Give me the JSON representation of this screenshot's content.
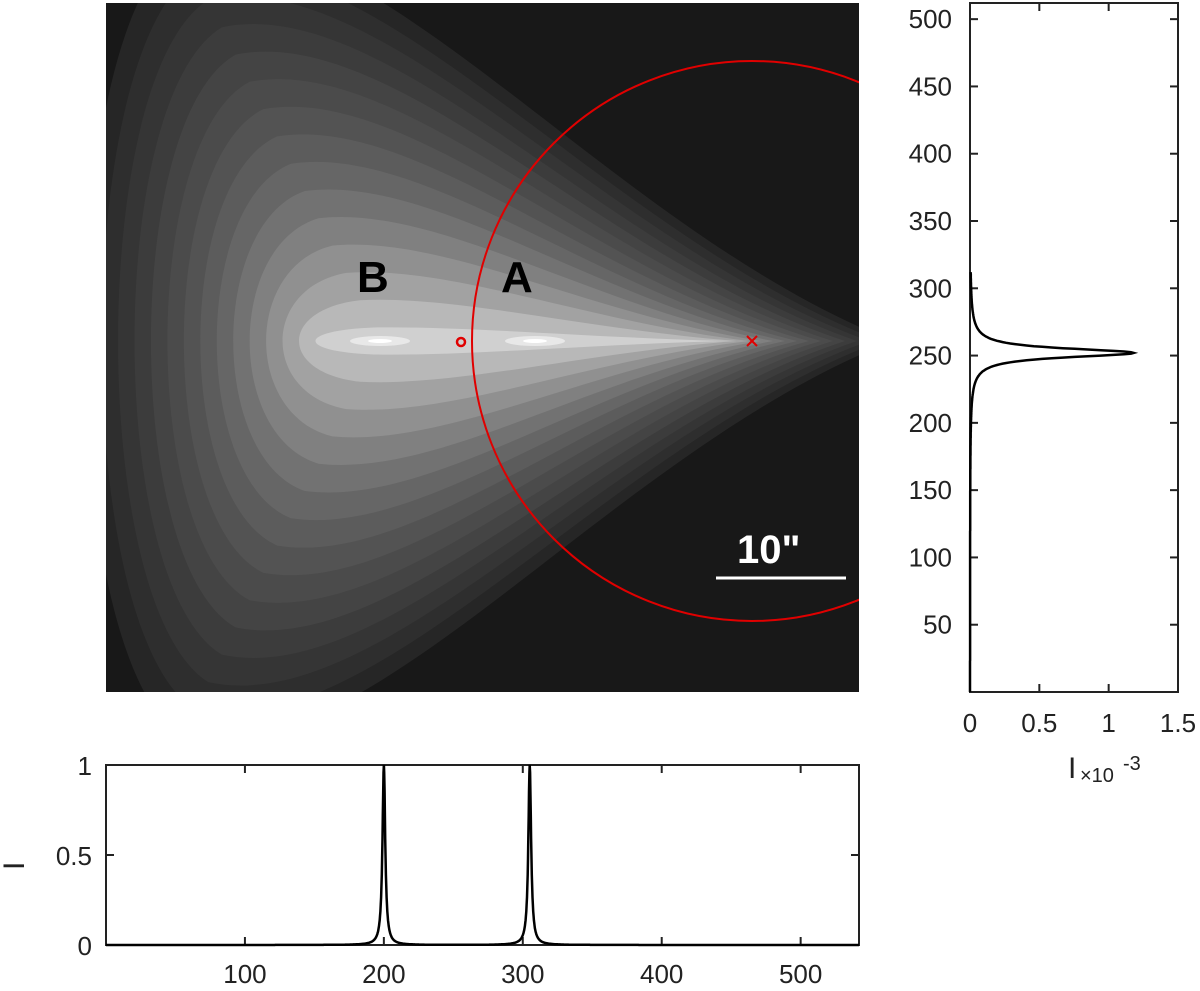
{
  "chart_data": [
    {
      "type": "heatmap",
      "description": "grayscale contour image of intensity map with two bright spots",
      "colormap": "gray",
      "background_levels": [
        "#181818",
        "#262626",
        "#2e2e2e",
        "#353535",
        "#3c3c3c",
        "#444444",
        "#4b4b4b",
        "#535353",
        "#5c5c5c",
        "#666666",
        "#727272",
        "#808080",
        "#909090",
        "#a2a2a2",
        "#b8b8b8",
        "#d0d0d0"
      ],
      "sources": [
        {
          "label": "B",
          "x": 180,
          "y": 0
        },
        {
          "label": "A",
          "x": 255,
          "y": 0
        }
      ],
      "circle": {
        "color": "#e00000",
        "center_marker": "x",
        "edge_marker": "o"
      },
      "scale_bar": {
        "label": "10\"",
        "color": "#ffffff"
      }
    },
    {
      "type": "line",
      "orientation": "vertical",
      "xlabel": "I",
      "xlabel_multiplier": "×10",
      "xlabel_exponent": "-3",
      "xlim": [
        0,
        1.5
      ],
      "xticks": [
        "0",
        "0.5",
        "1",
        "1.5"
      ],
      "ylim": [
        0,
        512
      ],
      "yticks": [
        "50",
        "100",
        "150",
        "200",
        "250",
        "300",
        "350",
        "400",
        "450",
        "500"
      ],
      "peak": {
        "position": 252,
        "value": 1.18,
        "width": 4
      },
      "line_color": "#000000"
    },
    {
      "type": "line",
      "ylabel": "I",
      "xlim": [
        0,
        542
      ],
      "ylim": [
        0,
        1
      ],
      "xticks": [
        "100",
        "200",
        "300",
        "400",
        "500"
      ],
      "yticks": [
        "0",
        "0.5",
        "1"
      ],
      "peaks": [
        {
          "position": 200,
          "value": 1.0,
          "width": 1.2
        },
        {
          "position": 305,
          "value": 1.0,
          "width": 1.2
        }
      ],
      "line_color": "#000000"
    }
  ]
}
